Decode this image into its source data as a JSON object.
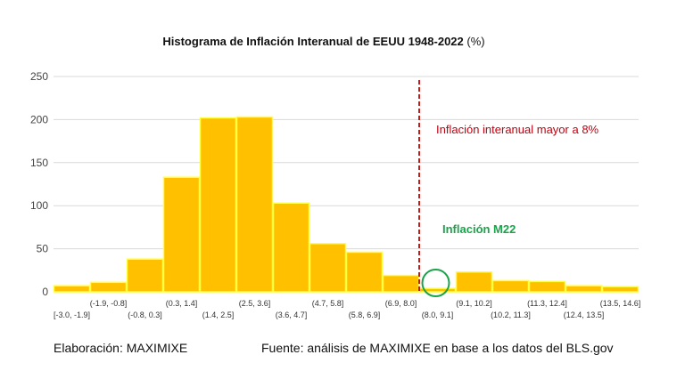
{
  "chart_data": {
    "type": "bar",
    "title": "Histograma de Inflación Interanual de EEUU 1948-2022",
    "title_unit": "(%)",
    "categories": [
      "[-3.0, -1.9]",
      "(-1.9, -0.8]",
      "(-0.8, 0.3]",
      "(0.3, 1.4]",
      "(1.4, 2.5]",
      "(2.5, 3.6]",
      "(3.6, 4.7]",
      "(4.7, 5.8]",
      "(5.8, 6.9]",
      "(6.9, 8.0]",
      "(8.0, 9.1]",
      "(9.1, 10.2]",
      "(10.2, 11.3]",
      "(11.3, 12.4]",
      "(12.4, 13.5]",
      "(13.5, 14.6]"
    ],
    "values": [
      7,
      11,
      38,
      133,
      202,
      203,
      103,
      56,
      46,
      19,
      4,
      23,
      13,
      12,
      7,
      6
    ],
    "ylim": [
      0,
      250
    ],
    "yticks": [
      0,
      50,
      100,
      150,
      200,
      250
    ],
    "threshold_value": 8,
    "annotations": {
      "threshold_label": "Inflación interanual mayor a 8%",
      "highlight_label": "Inflación M22"
    },
    "bar_color": "#ffc000",
    "bar_edge_color": "#ffff40",
    "threshold_color": "#c00000",
    "highlight_color": "#1aa34a"
  },
  "footer": {
    "left": "Elaboración: MAXIMIXE",
    "right": "Fuente: análisis de MAXIMIXE en base a los datos del BLS.gov"
  }
}
